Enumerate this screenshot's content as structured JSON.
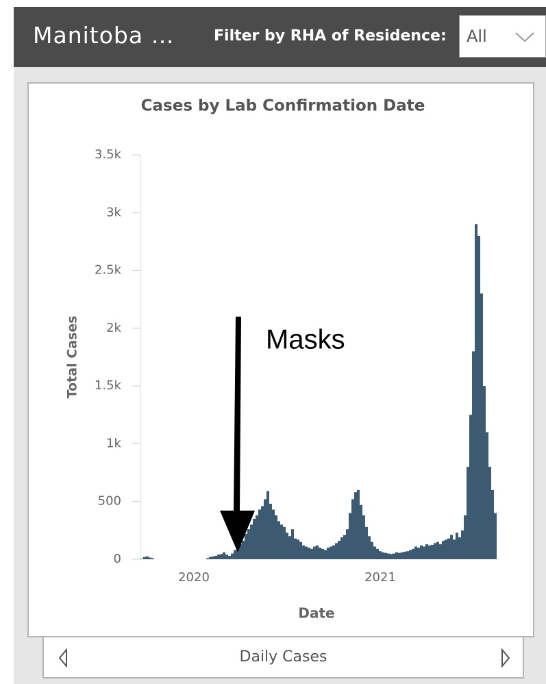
{
  "header": {
    "title": "Manitoba …",
    "filter_label": "Filter by RHA of Residence:",
    "filter_value": "All"
  },
  "footer": {
    "label": "Daily Cases"
  },
  "chart_data": {
    "type": "bar",
    "title": "Cases by Lab Confirmation Date",
    "x_label": "Date",
    "y_label": "Total Cases",
    "annotation": "Masks",
    "color": "#3d5a73",
    "categories": [
      null,
      null,
      null,
      null,
      null,
      null,
      null,
      null,
      null,
      null,
      null,
      null,
      null,
      null,
      null,
      null,
      null,
      null,
      null,
      "2020",
      null,
      null,
      null,
      null,
      null,
      null,
      null,
      null,
      null,
      null,
      null,
      null,
      null,
      null,
      null,
      null,
      null,
      null,
      null,
      null,
      null,
      null,
      null,
      null,
      null,
      null,
      null,
      null,
      null,
      null,
      null,
      null,
      null,
      null,
      null,
      null,
      null,
      null,
      null,
      null,
      null,
      null,
      null,
      null,
      null,
      null,
      null,
      null,
      null,
      null,
      null,
      null,
      null,
      null,
      null,
      null,
      null,
      null,
      null,
      null,
      null,
      null,
      null,
      null,
      null,
      null,
      null,
      "2021",
      null,
      null,
      null,
      null,
      null,
      null,
      null,
      null,
      null,
      null,
      null,
      null,
      null,
      null,
      null,
      null,
      null,
      null,
      null,
      null,
      null,
      null,
      null,
      null,
      null,
      null,
      null,
      null,
      null,
      null,
      null,
      null,
      null,
      null,
      null,
      null,
      null,
      null,
      null,
      null,
      null,
      null
    ],
    "values": [
      5,
      20,
      25,
      15,
      10,
      0,
      0,
      0,
      0,
      0,
      0,
      0,
      0,
      0,
      0,
      0,
      0,
      0,
      0,
      0,
      0,
      0,
      0,
      0,
      10,
      20,
      25,
      30,
      40,
      45,
      60,
      40,
      30,
      50,
      80,
      100,
      130,
      160,
      220,
      260,
      300,
      350,
      380,
      430,
      460,
      520,
      590,
      480,
      430,
      380,
      330,
      300,
      280,
      230,
      200,
      260,
      180,
      170,
      150,
      120,
      110,
      100,
      90,
      110,
      120,
      100,
      90,
      80,
      100,
      110,
      120,
      140,
      160,
      190,
      210,
      260,
      400,
      520,
      580,
      600,
      470,
      380,
      280,
      200,
      150,
      110,
      90,
      70,
      60,
      55,
      50,
      45,
      50,
      60,
      55,
      60,
      65,
      70,
      80,
      90,
      110,
      100,
      120,
      110,
      130,
      120,
      125,
      140,
      150,
      130,
      160,
      170,
      180,
      210,
      170,
      230,
      190,
      250,
      380,
      800,
      1250,
      1800,
      2900,
      2800,
      2300,
      1500,
      1100,
      800,
      600,
      400
    ],
    "ylim": [
      0,
      3500
    ],
    "yticks": [
      0,
      500,
      {
        "value": 1000,
        "label": "1k"
      },
      {
        "value": 1500,
        "label": "1.5k"
      },
      {
        "value": 2000,
        "label": "2k"
      },
      {
        "value": 2500,
        "label": "2.5k"
      },
      {
        "value": 3000,
        "label": "3k"
      },
      {
        "value": 3500,
        "label": "3.5k"
      }
    ]
  }
}
